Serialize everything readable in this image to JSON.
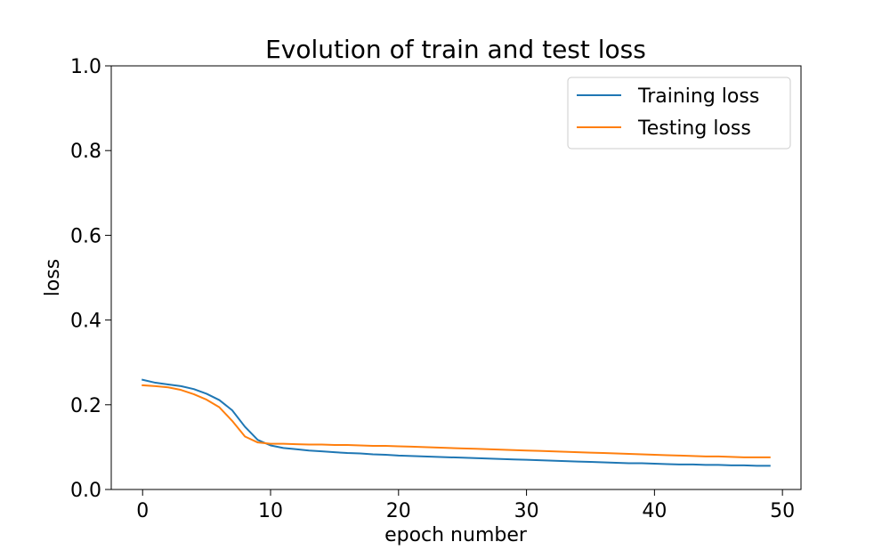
{
  "chart_data": {
    "type": "line",
    "title": "Evolution of train and test loss",
    "xlabel": "epoch number",
    "ylabel": "loss",
    "xlim": [
      -2.45,
      51.45
    ],
    "ylim": [
      0.0,
      1.0
    ],
    "xticks": [
      0,
      10,
      20,
      30,
      40,
      50
    ],
    "yticks": [
      0.0,
      0.2,
      0.4,
      0.6,
      0.8,
      1.0
    ],
    "grid": false,
    "legend_position": "top-right",
    "x": [
      0,
      1,
      2,
      3,
      4,
      5,
      6,
      7,
      8,
      9,
      10,
      11,
      12,
      13,
      14,
      15,
      16,
      17,
      18,
      19,
      20,
      21,
      22,
      23,
      24,
      25,
      26,
      27,
      28,
      29,
      30,
      31,
      32,
      33,
      34,
      35,
      36,
      37,
      38,
      39,
      40,
      41,
      42,
      43,
      44,
      45,
      46,
      47,
      48,
      49
    ],
    "series": [
      {
        "name": "Training loss",
        "color": "#1f77b4",
        "values": [
          0.259,
          0.252,
          0.248,
          0.244,
          0.237,
          0.226,
          0.211,
          0.187,
          0.148,
          0.117,
          0.104,
          0.098,
          0.095,
          0.092,
          0.09,
          0.088,
          0.086,
          0.085,
          0.083,
          0.082,
          0.08,
          0.079,
          0.078,
          0.077,
          0.076,
          0.075,
          0.074,
          0.073,
          0.072,
          0.071,
          0.07,
          0.069,
          0.068,
          0.067,
          0.066,
          0.065,
          0.064,
          0.063,
          0.062,
          0.062,
          0.061,
          0.06,
          0.059,
          0.059,
          0.058,
          0.058,
          0.057,
          0.057,
          0.056,
          0.056
        ]
      },
      {
        "name": "Testing loss",
        "color": "#ff7f0e",
        "values": [
          0.246,
          0.244,
          0.241,
          0.235,
          0.225,
          0.212,
          0.194,
          0.162,
          0.125,
          0.111,
          0.108,
          0.108,
          0.107,
          0.106,
          0.106,
          0.105,
          0.105,
          0.104,
          0.103,
          0.103,
          0.102,
          0.101,
          0.1,
          0.099,
          0.098,
          0.097,
          0.096,
          0.095,
          0.094,
          0.093,
          0.092,
          0.091,
          0.09,
          0.089,
          0.088,
          0.087,
          0.086,
          0.085,
          0.084,
          0.083,
          0.082,
          0.081,
          0.08,
          0.079,
          0.078,
          0.078,
          0.077,
          0.076,
          0.076,
          0.076
        ]
      }
    ]
  }
}
